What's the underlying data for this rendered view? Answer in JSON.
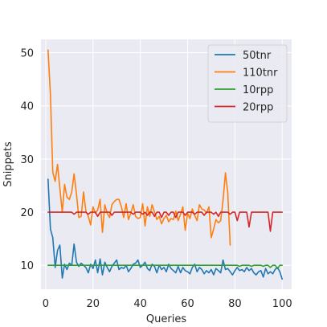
{
  "chart_data": {
    "type": "line",
    "title": "",
    "xlabel": "Queries",
    "ylabel": "Snippets",
    "xlim": [
      -2,
      104
    ],
    "ylim": [
      5.5,
      52.5
    ],
    "xticks": [
      0,
      20,
      40,
      60,
      80,
      100
    ],
    "yticks": [
      10,
      20,
      30,
      40,
      50
    ],
    "grid": true,
    "legend_position": "top-right",
    "series": [
      {
        "name": "50tnr",
        "color": "#1f77b4",
        "x": [
          1,
          2,
          3,
          4,
          5,
          6,
          7,
          8,
          9,
          10,
          11,
          12,
          13,
          14,
          15,
          16,
          17,
          18,
          19,
          20,
          21,
          22,
          23,
          24,
          25,
          26,
          27,
          28,
          29,
          30,
          31,
          32,
          33,
          34,
          35,
          36,
          37,
          38,
          39,
          40,
          41,
          42,
          43,
          44,
          45,
          46,
          47,
          48,
          49,
          50,
          51,
          52,
          53,
          54,
          55,
          56,
          57,
          58,
          59,
          60,
          61,
          62,
          63,
          64,
          65,
          66,
          67,
          68,
          69,
          70,
          71,
          72,
          73,
          74,
          75,
          76,
          77,
          78,
          79,
          80,
          81,
          82,
          83,
          84,
          85,
          86,
          87,
          88,
          89,
          90,
          91,
          92,
          93,
          94,
          95,
          96,
          97,
          98,
          99,
          100
        ],
        "y": [
          26.2,
          16.8,
          15.2,
          9.6,
          12.8,
          13.8,
          7.6,
          10.2,
          9.2,
          10.4,
          10.0,
          14.0,
          10.6,
          9.8,
          10.4,
          10.0,
          9.6,
          8.6,
          10.2,
          9.4,
          11.0,
          8.6,
          11.2,
          8.2,
          10.6,
          9.6,
          8.8,
          9.8,
          10.4,
          11.0,
          9.2,
          9.6,
          9.4,
          10.0,
          8.8,
          9.4,
          10.2,
          10.4,
          11.0,
          9.6,
          10.0,
          10.6,
          9.4,
          9.0,
          10.2,
          9.8,
          8.6,
          10.0,
          9.2,
          9.6,
          8.8,
          10.2,
          9.4,
          9.0,
          8.6,
          9.8,
          8.6,
          9.6,
          9.0,
          8.8,
          8.4,
          9.6,
          10.2,
          8.8,
          9.6,
          9.2,
          8.4,
          9.0,
          8.6,
          9.2,
          8.2,
          9.4,
          9.0,
          8.6,
          11.0,
          9.2,
          9.4,
          8.8,
          8.2,
          9.0,
          9.6,
          9.0,
          9.2,
          8.8,
          9.6,
          9.0,
          9.4,
          8.6,
          8.2,
          8.8,
          9.0,
          7.8,
          9.4,
          8.4,
          8.8,
          8.4,
          9.2,
          9.6,
          8.8,
          7.4
        ]
      },
      {
        "name": "110tnr",
        "color": "#ff7f0e",
        "x": [
          1,
          2,
          3,
          4,
          5,
          6,
          7,
          8,
          9,
          10,
          11,
          12,
          13,
          14,
          15,
          16,
          17,
          18,
          19,
          20,
          21,
          22,
          23,
          24,
          25,
          26,
          27,
          28,
          29,
          30,
          31,
          32,
          33,
          34,
          35,
          36,
          37,
          38,
          39,
          40,
          41,
          42,
          43,
          44,
          45,
          46,
          47,
          48,
          49,
          50,
          51,
          52,
          53,
          54,
          55,
          56,
          57,
          58,
          59,
          60,
          61,
          62,
          63,
          64,
          65,
          66,
          67,
          68,
          69,
          70,
          71,
          72,
          73,
          74,
          75,
          76,
          77,
          78
        ],
        "y": [
          50.5,
          42.0,
          27.5,
          25.8,
          29.0,
          24.5,
          20.0,
          25.2,
          22.8,
          22.4,
          23.8,
          27.2,
          23.4,
          19.0,
          19.2,
          23.8,
          20.2,
          19.2,
          17.6,
          21.0,
          19.8,
          20.4,
          22.4,
          16.2,
          21.4,
          19.8,
          19.0,
          21.4,
          22.0,
          22.4,
          22.4,
          21.0,
          19.0,
          21.6,
          18.6,
          19.8,
          21.4,
          19.2,
          18.8,
          19.0,
          21.6,
          17.4,
          21.0,
          19.2,
          21.4,
          20.0,
          18.6,
          19.2,
          17.8,
          18.8,
          19.4,
          18.2,
          18.8,
          18.6,
          20.2,
          18.4,
          19.6,
          21.0,
          16.6,
          19.8,
          18.8,
          20.6,
          19.4,
          18.4,
          21.4,
          20.6,
          20.4,
          19.8,
          21.0,
          15.2,
          16.8,
          18.6,
          18.0,
          18.4,
          22.2,
          27.4,
          23.6,
          13.8
        ]
      },
      {
        "name": "10rpp",
        "color": "#2ca02c",
        "x": [
          1,
          2,
          3,
          4,
          5,
          6,
          7,
          8,
          9,
          10,
          11,
          12,
          13,
          14,
          15,
          16,
          17,
          18,
          19,
          20,
          21,
          22,
          23,
          24,
          25,
          26,
          27,
          28,
          29,
          30,
          31,
          32,
          33,
          34,
          35,
          36,
          37,
          38,
          39,
          40,
          41,
          42,
          43,
          44,
          45,
          46,
          47,
          48,
          49,
          50,
          51,
          52,
          53,
          54,
          55,
          56,
          57,
          58,
          59,
          60,
          61,
          62,
          63,
          64,
          65,
          66,
          67,
          68,
          69,
          70,
          71,
          72,
          73,
          74,
          75,
          76,
          77,
          78,
          79,
          80,
          81,
          82,
          83,
          84,
          85,
          86,
          87,
          88,
          89,
          90,
          91,
          92,
          93,
          94,
          95,
          96,
          97,
          98,
          99,
          100
        ],
        "y": [
          10,
          10,
          10,
          10,
          10,
          10,
          10,
          10,
          10,
          10,
          10,
          10,
          10,
          10,
          10,
          10,
          10,
          10,
          10,
          10,
          10,
          10,
          10,
          10,
          10,
          10,
          10,
          10,
          10,
          10,
          10,
          10,
          10,
          10,
          10,
          10,
          10,
          10,
          10,
          10,
          10,
          10,
          10,
          10,
          10,
          10,
          10,
          10,
          10,
          10,
          10,
          10,
          10,
          10,
          10,
          10,
          10,
          10,
          10,
          10,
          10,
          10,
          10,
          10,
          10,
          10,
          10,
          10,
          10,
          10,
          10,
          10,
          10,
          10,
          10,
          10,
          10,
          10,
          10,
          10,
          10,
          9.8,
          10,
          10,
          10,
          10,
          9.8,
          10,
          10,
          10,
          10,
          9.8,
          10,
          10,
          9.6,
          10,
          10,
          9.4,
          10,
          10
        ]
      },
      {
        "name": "20rpp",
        "color": "#d62728",
        "x": [
          1,
          2,
          3,
          4,
          5,
          6,
          7,
          8,
          9,
          10,
          11,
          12,
          13,
          14,
          15,
          16,
          17,
          18,
          19,
          20,
          21,
          22,
          23,
          24,
          25,
          26,
          27,
          28,
          29,
          30,
          31,
          32,
          33,
          34,
          35,
          36,
          37,
          38,
          39,
          40,
          41,
          42,
          43,
          44,
          45,
          46,
          47,
          48,
          49,
          50,
          51,
          52,
          53,
          54,
          55,
          56,
          57,
          58,
          59,
          60,
          61,
          62,
          63,
          64,
          65,
          66,
          67,
          68,
          69,
          70,
          71,
          72,
          73,
          74,
          75,
          76,
          77,
          78,
          79,
          80,
          81,
          82,
          83,
          84,
          85,
          86,
          87,
          88,
          89,
          90,
          91,
          92,
          93,
          94,
          95,
          96,
          97,
          98,
          99,
          100
        ],
        "y": [
          20,
          20,
          20,
          20,
          20,
          20,
          20,
          20,
          20,
          20,
          20,
          19.6,
          20,
          20,
          20,
          20,
          20,
          19.6,
          20,
          20,
          20,
          19.2,
          20,
          20,
          20,
          20,
          20,
          19.4,
          20,
          20,
          20,
          20,
          20,
          20,
          20,
          20,
          19.6,
          20,
          20,
          20,
          19.6,
          20,
          19.4,
          20,
          20,
          19.2,
          20,
          20,
          19.0,
          20,
          20,
          19.4,
          20,
          20,
          19.0,
          20,
          20,
          20,
          19.4,
          20,
          20,
          20,
          19.6,
          20,
          20,
          20,
          19.4,
          20,
          20,
          20,
          19.6,
          20,
          19.2,
          20,
          20,
          20,
          20,
          19.6,
          20,
          20,
          18.4,
          20,
          20,
          20,
          20,
          17.2,
          20,
          20,
          20,
          20,
          20,
          20,
          20,
          20,
          16.4,
          20,
          20,
          20,
          20,
          20
        ]
      }
    ]
  }
}
